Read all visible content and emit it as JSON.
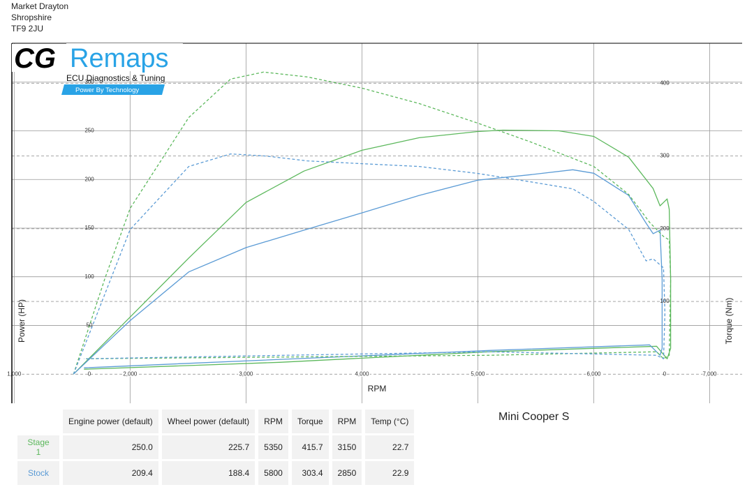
{
  "header": {
    "lines": [
      "Market Drayton",
      "Shropshire",
      "TF9 2JU"
    ]
  },
  "logo": {
    "brand": "CG",
    "name": "Remaps",
    "tagline": "ECU Diagnostics & Tuning",
    "slogan": "Power By Technology"
  },
  "chart_data": {
    "type": "line",
    "xlabel": "RPM",
    "ylabel": "Power (HP)",
    "y2label": "Torque (Nm)",
    "xlim": [
      980,
      7280
    ],
    "ylim": [
      -30,
      340
    ],
    "y2lim": [
      -40,
      455
    ],
    "xticks": [
      {
        "value": 1000,
        "label": "1,000"
      },
      {
        "value": 2000,
        "label": "2,000"
      },
      {
        "value": 3000,
        "label": "3,000"
      },
      {
        "value": 4000,
        "label": "4,000"
      },
      {
        "value": 5000,
        "label": "5,000"
      },
      {
        "value": 6000,
        "label": "6,000"
      },
      {
        "value": 7000,
        "label": "7,000"
      }
    ],
    "yticks": [
      0,
      50,
      100,
      150,
      200,
      250,
      300
    ],
    "y2ticks": [
      0,
      100,
      200,
      300,
      400
    ],
    "grid": true,
    "series": [
      {
        "color": "#5cb85c",
        "dash": false,
        "axis": "y",
        "x": [
          1512,
          2000,
          2506,
          3000,
          3500,
          4000,
          4494,
          5000,
          5217,
          5699,
          6000,
          6301,
          6512,
          6572,
          6602,
          6633,
          6651,
          6663,
          6663,
          6633,
          6542,
          5096,
          3289,
          1602
        ],
        "values": [
          0,
          58.6,
          119.3,
          176.4,
          208.6,
          230,
          242.9,
          249.3,
          250.7,
          250,
          244.3,
          222.9,
          190.7,
          172.9,
          176.4,
          180,
          169.3,
          97.9,
          26.4,
          15.7,
          28.6,
          22.9,
          12.1,
          5
        ]
      },
      {
        "color": "#5b9bd5",
        "dash": false,
        "axis": "y",
        "x": [
          1512,
          2000,
          2506,
          3000,
          3500,
          4000,
          4494,
          5000,
          5458,
          5819,
          6000,
          6301,
          6452,
          6512,
          6572,
          6590,
          6590,
          6572,
          6482,
          5096,
          1602
        ],
        "values": [
          0,
          55,
          105,
          130,
          147.9,
          165.7,
          183.6,
          199.3,
          205,
          210,
          206.4,
          183.6,
          155,
          144.3,
          147.9,
          97.9,
          26.4,
          19.3,
          30,
          24.3,
          6.4
        ]
      },
      {
        "color": "#5cb85c",
        "dash": true,
        "axis": "y2",
        "x": [
          1512,
          1783,
          2000,
          2506,
          2867,
          3151,
          3530,
          4000,
          4494,
          5000,
          5458,
          6000,
          6301,
          6482,
          6602,
          6651,
          6663,
          6651,
          6602,
          6542,
          5096,
          1602
        ],
        "values": [
          0,
          131.7,
          227.9,
          352.9,
          405.8,
          415.4,
          408.7,
          393.3,
          372.1,
          345.2,
          319.2,
          285.6,
          247.1,
          208.7,
          189.4,
          184.6,
          131.7,
          26,
          21.2,
          30.8,
          26,
          21.2
        ]
      },
      {
        "color": "#5b9bd5",
        "dash": true,
        "axis": "y2",
        "x": [
          1512,
          2000,
          2506,
          2867,
          3169,
          3530,
          4000,
          4494,
          5000,
          5458,
          5819,
          6000,
          6301,
          6452,
          6512,
          6602,
          6614,
          6602,
          6542,
          5096,
          1602
        ],
        "values": [
          0,
          199,
          285.6,
          302.9,
          300,
          293.3,
          289.4,
          285.6,
          276,
          264.4,
          254.8,
          237.5,
          199,
          155.8,
          158.7,
          146.2,
          83.7,
          21.2,
          26,
          30.8,
          21.2
        ]
      }
    ]
  },
  "car": "Mini Cooper S",
  "table": {
    "columns": [
      "Engine power (default)",
      "Wheel power (default)",
      "RPM",
      "Torque",
      "RPM",
      "Temp (°C)"
    ],
    "rows": [
      {
        "label": "Stage 1",
        "color": "#5cb85c",
        "cells": [
          "250.0",
          "225.7",
          "5350",
          "415.7",
          "3150",
          "22.7"
        ]
      },
      {
        "label": "Stock",
        "color": "#5b9bd5",
        "cells": [
          "209.4",
          "188.4",
          "5800",
          "303.4",
          "2850",
          "22.9"
        ]
      }
    ]
  }
}
